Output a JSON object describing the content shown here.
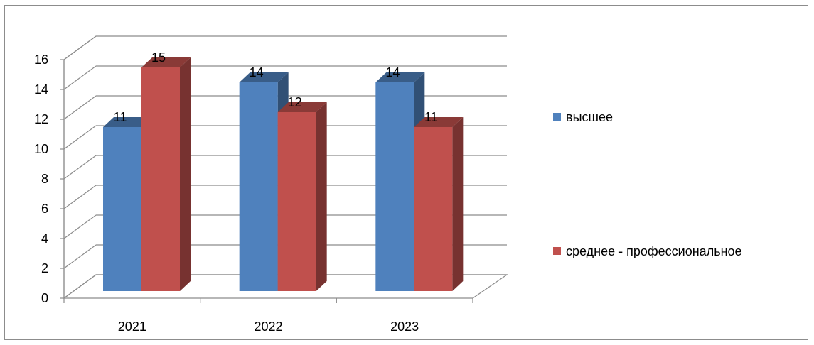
{
  "chart_data": {
    "type": "bar",
    "style": "3d-clustered-column",
    "categories": [
      "2021",
      "2022",
      "2023"
    ],
    "series": [
      {
        "name": "высшее",
        "values": [
          11,
          14,
          14
        ],
        "color": "#4f81bd"
      },
      {
        "name": "среднее - профессиональное",
        "values": [
          15,
          12,
          11
        ],
        "color": "#c0504d"
      }
    ],
    "ylim": [
      0,
      16
    ],
    "yticks": [
      "0",
      "2",
      "4",
      "6",
      "8",
      "10",
      "12",
      "14",
      "16"
    ],
    "grid": true,
    "legend_position": "right",
    "data_labels": true
  }
}
